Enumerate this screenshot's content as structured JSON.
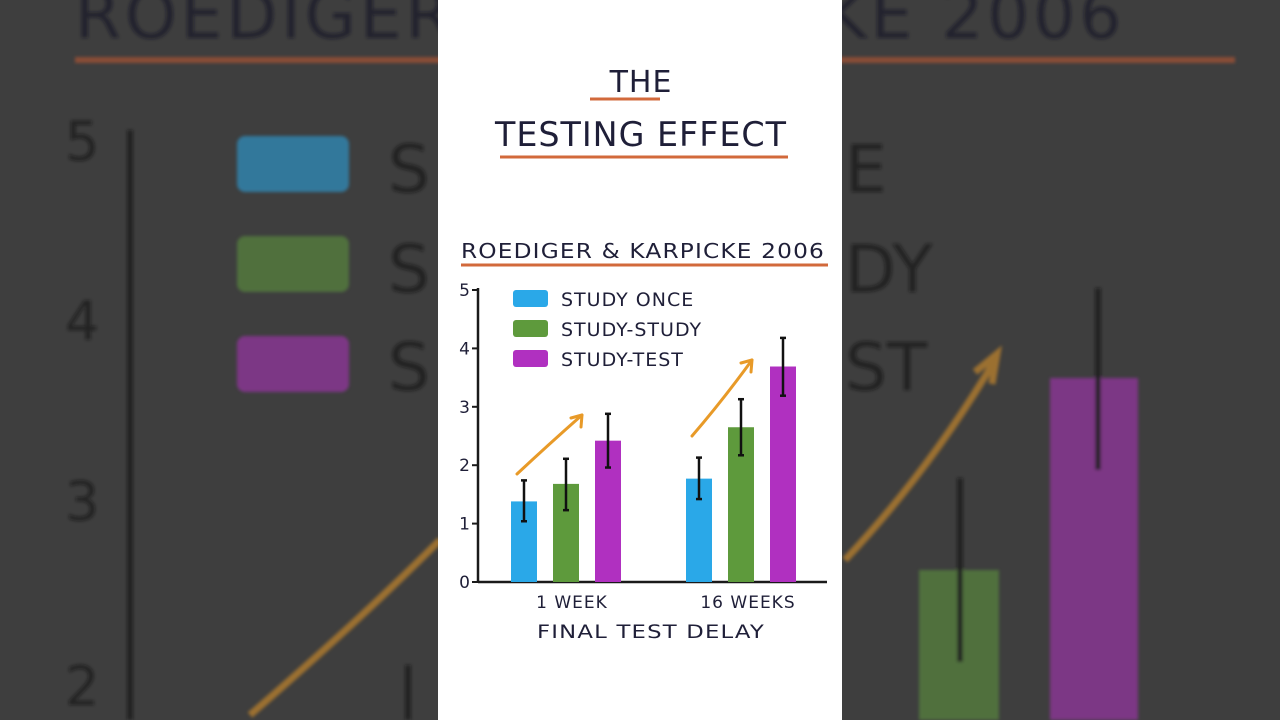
{
  "page": {
    "heading_line1": "THE",
    "heading_line2": "TESTING EFFECT",
    "accent_color": "#d2693b"
  },
  "chart_data": {
    "type": "bar",
    "title": "ROEDIGER & KARPICKE 2006",
    "xlabel": "FINAL TEST DELAY",
    "ylabel": "",
    "ylim": [
      0,
      5
    ],
    "yticks": [
      "0",
      "1",
      "2",
      "3",
      "4",
      "5"
    ],
    "categories": [
      "1 WEEK",
      "16 WEEKS"
    ],
    "legend_position": "top-left",
    "grid": false,
    "series": [
      {
        "name": "STUDY ONCE",
        "color": "#2aa8e8",
        "values": [
          1.38,
          1.77
        ],
        "error_low": [
          1.04,
          1.42
        ],
        "error_high": [
          1.74,
          2.13
        ]
      },
      {
        "name": "STUDY-STUDY",
        "color": "#5e9a3c",
        "values": [
          1.68,
          2.65
        ],
        "error_low": [
          1.23,
          2.17
        ],
        "error_high": [
          2.11,
          3.13
        ]
      },
      {
        "name": "STUDY-TEST",
        "color": "#b030c0",
        "values": [
          2.42,
          3.69
        ],
        "error_low": [
          1.96,
          3.19
        ],
        "error_high": [
          2.88,
          4.18
        ]
      }
    ],
    "trend_arrows": {
      "color": "#e89a28"
    }
  }
}
